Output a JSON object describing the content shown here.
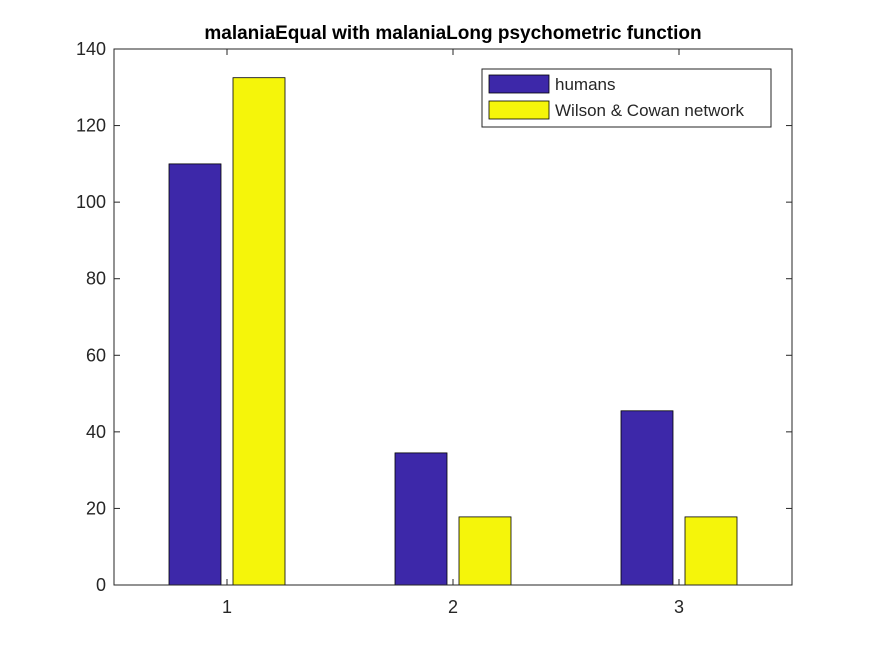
{
  "chart_data": {
    "type": "bar",
    "title": "malaniaEqual with malaniaLong psychometric function",
    "xlabel": "",
    "ylabel": "",
    "categories": [
      "1",
      "2",
      "3"
    ],
    "ylim": [
      0,
      140
    ],
    "yticks": [
      "0",
      "20",
      "40",
      "60",
      "80",
      "100",
      "120",
      "140"
    ],
    "series": [
      {
        "name": "humans",
        "color": "#3d28a9",
        "values": [
          110,
          34.5,
          45.5
        ]
      },
      {
        "name": "Wilson & Cowan network",
        "color": "#f5f50a",
        "values": [
          132.5,
          17.8,
          17.8
        ]
      }
    ],
    "legend_position": "top-right",
    "grid": false
  }
}
